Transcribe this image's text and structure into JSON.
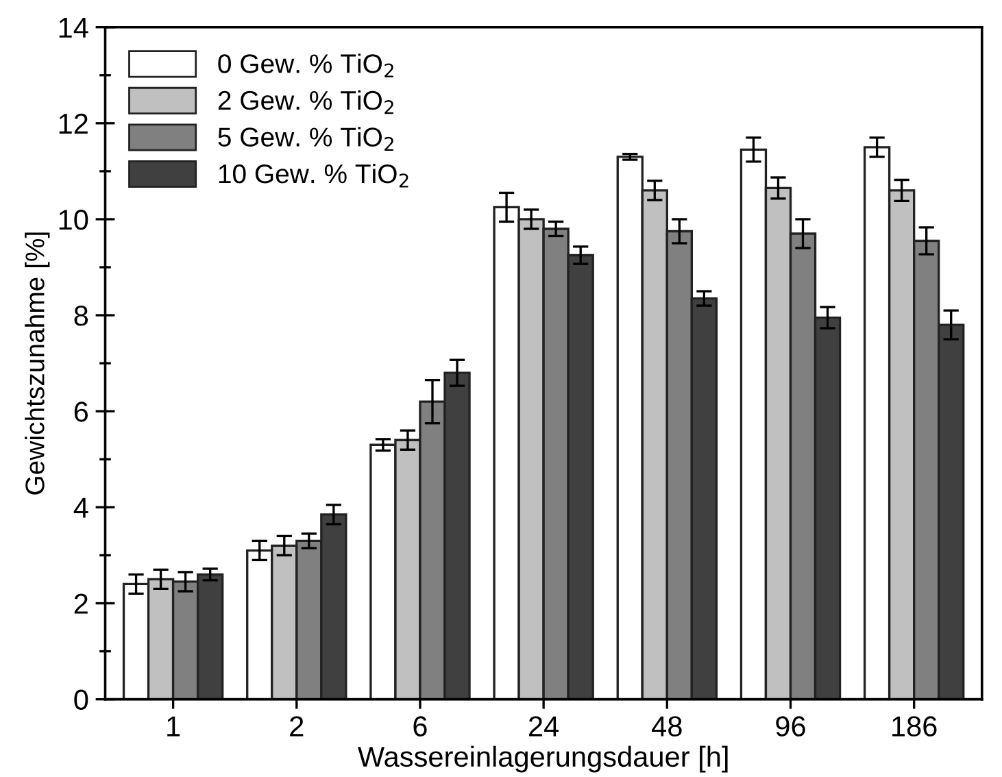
{
  "chart_data": {
    "type": "bar",
    "xlabel": "Wassereinlagerungsdauer [h]",
    "ylabel": "Gewichtszunahme [%]",
    "categories": [
      "1",
      "2",
      "6",
      "24",
      "48",
      "96",
      "186"
    ],
    "ylim": [
      0,
      14
    ],
    "yticks": [
      0,
      2,
      4,
      6,
      8,
      10,
      12,
      14
    ],
    "legend": "top left",
    "grid": false,
    "series": [
      {
        "name": "0 Gew. % TiO$_{2}$",
        "color": "#ffffff",
        "values": [
          2.4,
          3.1,
          5.3,
          10.25,
          11.3,
          11.45,
          11.5
        ],
        "errors": [
          0.2,
          0.2,
          0.12,
          0.3,
          0.06,
          0.25,
          0.2
        ]
      },
      {
        "name": "2 Gew. % TiO$_{2}$",
        "color": "#c0c0c0",
        "values": [
          2.5,
          3.2,
          5.4,
          10.0,
          10.6,
          10.65,
          10.6
        ],
        "errors": [
          0.2,
          0.2,
          0.2,
          0.2,
          0.2,
          0.22,
          0.22
        ]
      },
      {
        "name": "5 Gew. % TiO$_{2}$",
        "color": "#808080",
        "values": [
          2.45,
          3.3,
          6.2,
          9.8,
          9.75,
          9.7,
          9.55
        ],
        "errors": [
          0.2,
          0.15,
          0.45,
          0.15,
          0.25,
          0.3,
          0.28
        ]
      },
      {
        "name": "10 Gew. % TiO$_{2}$",
        "color": "#404040",
        "values": [
          2.6,
          3.85,
          6.8,
          9.25,
          8.35,
          7.95,
          7.8
        ],
        "errors": [
          0.12,
          0.2,
          0.27,
          0.18,
          0.15,
          0.22,
          0.3
        ]
      }
    ]
  }
}
